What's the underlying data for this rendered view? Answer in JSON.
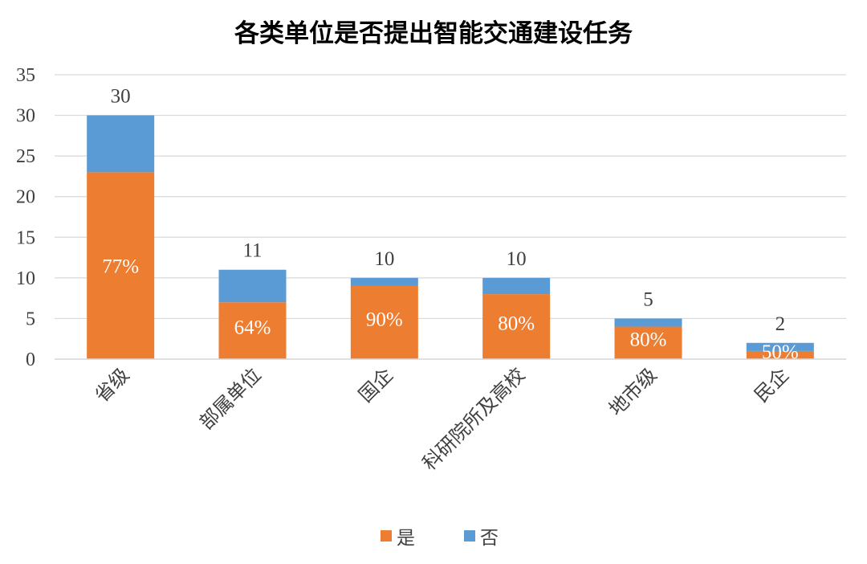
{
  "chart_data": {
    "type": "bar",
    "stacked": true,
    "title": "各类单位是否提出智能交通建设任务",
    "categories": [
      "省级",
      "部属单位",
      "国企",
      "科研院所及高校",
      "地市级",
      "民企"
    ],
    "series": [
      {
        "name": "是",
        "values": [
          23,
          7,
          9,
          8,
          4,
          1
        ],
        "color": "#ED7D31"
      },
      {
        "name": "否",
        "values": [
          7,
          4,
          1,
          2,
          1,
          1
        ],
        "color": "#5B9BD5"
      }
    ],
    "totals": [
      "30",
      "11",
      "10",
      "10",
      "5",
      "2"
    ],
    "percent_labels": [
      "77%",
      "64%",
      "90%",
      "80%",
      "80%",
      "50%"
    ],
    "ylim": [
      0,
      35
    ],
    "yticks": [
      "0",
      "5",
      "10",
      "15",
      "20",
      "25",
      "30",
      "35"
    ],
    "grid": true,
    "legend_position": "bottom"
  }
}
